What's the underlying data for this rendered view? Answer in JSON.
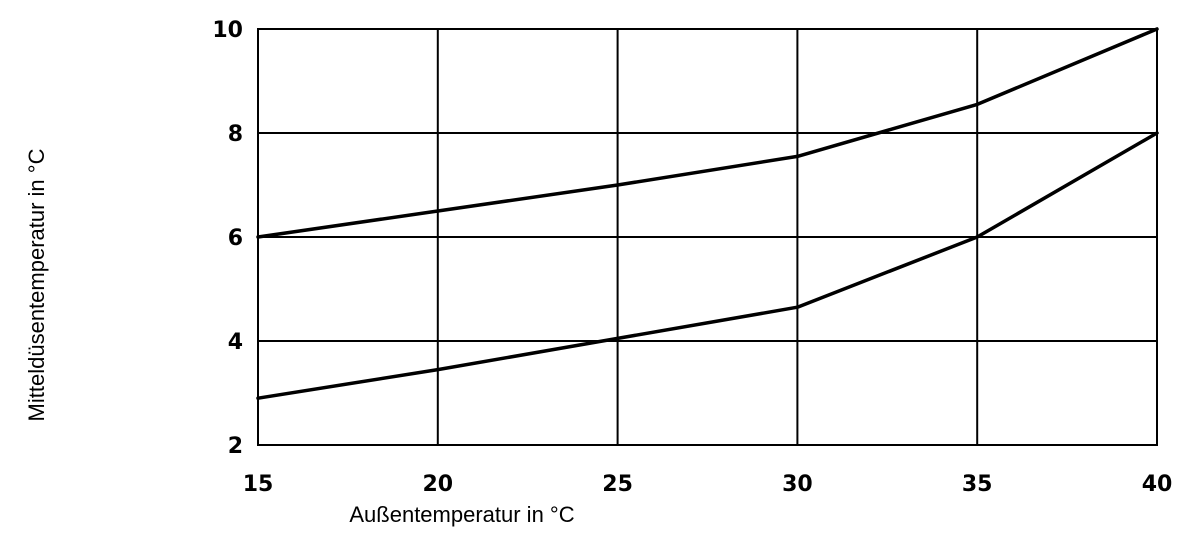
{
  "chart_data": {
    "type": "line",
    "title": "",
    "xlabel": "Außentemperatur in °C",
    "ylabel": "Mitteldüsentemperatur in °C",
    "xlim": [
      15,
      40
    ],
    "ylim": [
      2,
      10
    ],
    "x_ticks": [
      15,
      20,
      25,
      30,
      35,
      40
    ],
    "y_ticks": [
      2,
      4,
      6,
      8,
      10
    ],
    "grid": true,
    "legend": "none",
    "series": [
      {
        "x": [
          15,
          20,
          25,
          30,
          35,
          40
        ],
        "y": [
          6.0,
          6.5,
          7.0,
          7.55,
          8.55,
          10.0
        ]
      },
      {
        "x": [
          15,
          20,
          25,
          30,
          35,
          40
        ],
        "y": [
          2.9,
          3.45,
          4.05,
          4.65,
          6.0,
          8.0
        ]
      }
    ],
    "colors": {
      "line": "#000000",
      "grid": "#000000"
    }
  }
}
